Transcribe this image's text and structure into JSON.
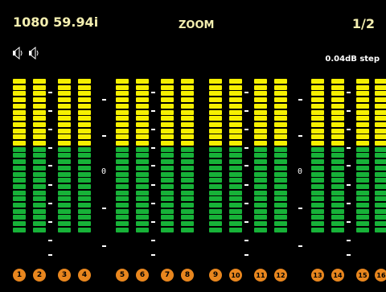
{
  "header": {
    "format": "1080 59.94i",
    "mode": "ZOOM",
    "page": "1/2",
    "step": "0.04dB step",
    "icons": [
      "speaker-icon",
      "speaker-icon"
    ]
  },
  "scale": {
    "zero_label": "0"
  },
  "meters": {
    "yellow_segments": 11,
    "green_segments": 14,
    "channels": [
      {
        "label": "1"
      },
      {
        "label": "2"
      },
      {
        "label": "3"
      },
      {
        "label": "4"
      },
      {
        "label": "5"
      },
      {
        "label": "6"
      },
      {
        "label": "7"
      },
      {
        "label": "8"
      },
      {
        "label": "9"
      },
      {
        "label": "10"
      },
      {
        "label": "11"
      },
      {
        "label": "12"
      },
      {
        "label": "13"
      },
      {
        "label": "14"
      },
      {
        "label": "15"
      },
      {
        "label": "16"
      }
    ],
    "colors": {
      "yellow": "#f6f000",
      "green": "#17b238",
      "badge": "#e8861e"
    }
  }
}
